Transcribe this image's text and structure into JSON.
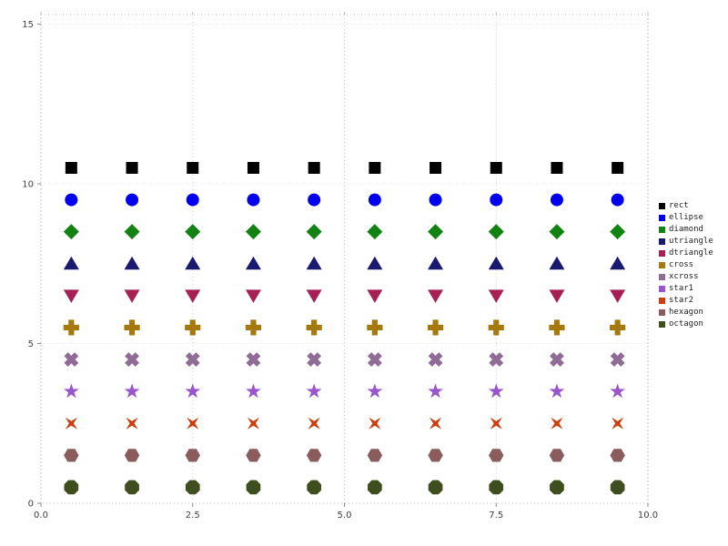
{
  "chart_data": {
    "type": "scatter",
    "title": "",
    "xlabel": "",
    "ylabel": "",
    "xlim": [
      0,
      10
    ],
    "ylim": [
      0,
      15
    ],
    "grid": "dotted",
    "legend_position": "right",
    "x": [
      0.5,
      1.5,
      2.5,
      3.5,
      4.5,
      5.5,
      6.5,
      7.5,
      8.5,
      9.5
    ],
    "xticks": [
      "0.0",
      "2.5",
      "5.0",
      "7.5",
      "10.0"
    ],
    "xtick_values": [
      0,
      2.5,
      5,
      7.5,
      10
    ],
    "yticks": [
      "0",
      "5",
      "10",
      "15"
    ],
    "ytick_values": [
      0,
      5,
      10,
      15
    ],
    "series": [
      {
        "name": "rect",
        "marker": "rect",
        "color": "#000000",
        "y": 10.5
      },
      {
        "name": "ellipse",
        "marker": "ellipse",
        "color": "#0000ee",
        "y": 9.5
      },
      {
        "name": "diamond",
        "marker": "diamond",
        "color": "#128312",
        "y": 8.5
      },
      {
        "name": "utriangle",
        "marker": "utriangle",
        "color": "#191970",
        "y": 7.5
      },
      {
        "name": "dtriangle",
        "marker": "dtriangle",
        "color": "#a62055",
        "y": 6.5
      },
      {
        "name": "cross",
        "marker": "cross",
        "color": "#a5790e",
        "y": 5.5
      },
      {
        "name": "xcross",
        "marker": "xcross",
        "color": "#8f6b96",
        "y": 4.5
      },
      {
        "name": "star1",
        "marker": "star1",
        "color": "#9955cc",
        "y": 3.5
      },
      {
        "name": "star2",
        "marker": "star2",
        "color": "#cc3e0d",
        "y": 2.5
      },
      {
        "name": "hexagon",
        "marker": "hexagon",
        "color": "#8b5c5c",
        "y": 1.5
      },
      {
        "name": "octagon",
        "marker": "octagon",
        "color": "#3e4e1e",
        "y": 0.5
      }
    ]
  }
}
